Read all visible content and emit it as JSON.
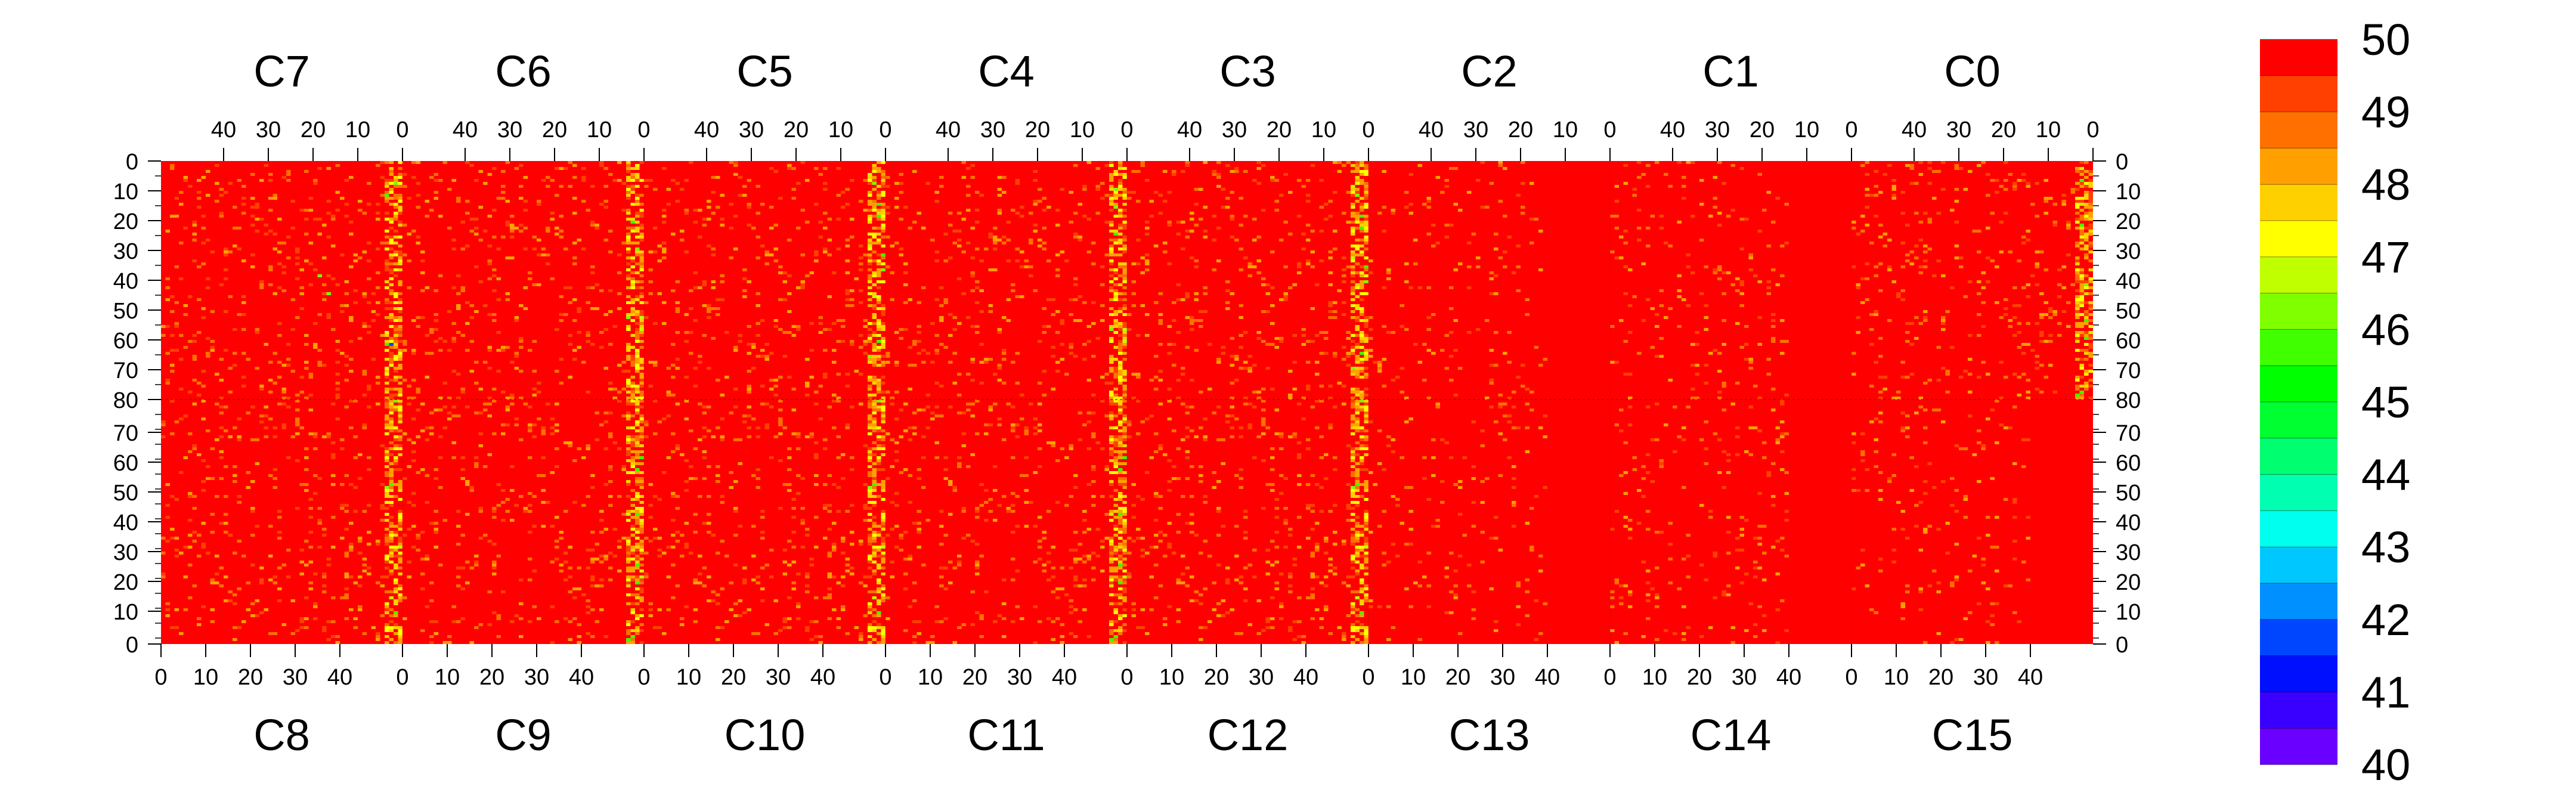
{
  "chart_data": {
    "type": "heatmap",
    "title": "",
    "color_scale": {
      "min": 40,
      "max": 50,
      "tick_labels": [
        "50",
        "49",
        "48",
        "47",
        "46",
        "45",
        "44",
        "43",
        "42",
        "41",
        "40"
      ],
      "colors_low_to_high": [
        "#6a00ff",
        "#3a00ff",
        "#0010ff",
        "#0046ff",
        "#0090ff",
        "#00c8ff",
        "#00ffee",
        "#00ffb0",
        "#00ff70",
        "#00ff30",
        "#00ff00",
        "#40ff00",
        "#80ff00",
        "#c0ff00",
        "#ffff00",
        "#ffd000",
        "#ffa000",
        "#ff7000",
        "#ff4000",
        "#ff0000"
      ]
    },
    "top_panels": [
      {
        "label": "C7",
        "x_ticks": [
          "40",
          "30",
          "20",
          "10",
          "0"
        ],
        "hot_edge": "right"
      },
      {
        "label": "C6",
        "x_ticks": [
          "40",
          "30",
          "20",
          "10",
          "0"
        ],
        "hot_edge": "right"
      },
      {
        "label": "C5",
        "x_ticks": [
          "40",
          "30",
          "20",
          "10",
          "0"
        ],
        "hot_edge": "right"
      },
      {
        "label": "C4",
        "x_ticks": [
          "40",
          "30",
          "20",
          "10",
          "0"
        ],
        "hot_edge": "right"
      },
      {
        "label": "C3",
        "x_ticks": [
          "40",
          "30",
          "20",
          "10",
          "0"
        ],
        "hot_edge": "right"
      },
      {
        "label": "C2",
        "x_ticks": [
          "40",
          "30",
          "20",
          "10",
          "0"
        ],
        "hot_edge": "none"
      },
      {
        "label": "C1",
        "x_ticks": [
          "40",
          "30",
          "20",
          "10",
          "0"
        ],
        "hot_edge": "none"
      },
      {
        "label": "C0",
        "x_ticks": [
          "40",
          "30",
          "20",
          "10",
          "0"
        ],
        "hot_edge": "right"
      }
    ],
    "bottom_panels": [
      {
        "label": "C8",
        "x_ticks": [
          "0",
          "10",
          "20",
          "30",
          "40"
        ],
        "hot_edge": "right"
      },
      {
        "label": "C9",
        "x_ticks": [
          "0",
          "10",
          "20",
          "30",
          "40"
        ],
        "hot_edge": "right"
      },
      {
        "label": "C10",
        "x_ticks": [
          "0",
          "10",
          "20",
          "30",
          "40"
        ],
        "hot_edge": "right"
      },
      {
        "label": "C11",
        "x_ticks": [
          "0",
          "10",
          "20",
          "30",
          "40"
        ],
        "hot_edge": "right"
      },
      {
        "label": "C12",
        "x_ticks": [
          "0",
          "10",
          "20",
          "30",
          "40"
        ],
        "hot_edge": "right"
      },
      {
        "label": "C13",
        "x_ticks": [
          "0",
          "10",
          "20",
          "30",
          "40"
        ],
        "hot_edge": "none"
      },
      {
        "label": "C14",
        "x_ticks": [
          "0",
          "10",
          "20",
          "30",
          "40"
        ],
        "hot_edge": "none"
      },
      {
        "label": "C15",
        "x_ticks": [
          "0",
          "10",
          "20",
          "30",
          "40"
        ],
        "hot_edge": "none"
      }
    ],
    "y_ticks": [
      "0",
      "10",
      "20",
      "30",
      "40",
      "50",
      "60",
      "70",
      "80",
      "70",
      "60",
      "50",
      "40",
      "30",
      "20",
      "10",
      "0"
    ],
    "grid": false,
    "legend": "right",
    "background_value": 50
  }
}
